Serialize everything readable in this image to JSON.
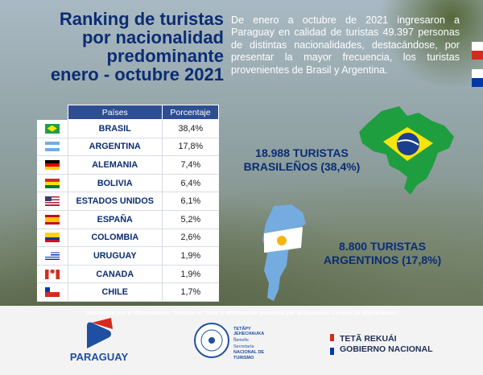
{
  "title_lines": [
    "Ranking de turistas",
    "por nacionalidad",
    "predominante",
    "enero - octubre 2021"
  ],
  "intro": "De enero a octubre de 2021 ingresaron a Paraguay en calidad de turistas 49.397 personas de distintas nacionalidades, destacándose, por presentar la mayor frecuencia, los turistas provenientes de Brasil y Argentina.",
  "table": {
    "headers": [
      "Países",
      "Porcentaje"
    ],
    "rows": [
      {
        "flag": "brazil-flag-icon",
        "country": "BRASIL",
        "pct": "38,4%"
      },
      {
        "flag": "argentina-flag-icon",
        "country": "ARGENTINA",
        "pct": "17,8%"
      },
      {
        "flag": "germany-flag-icon",
        "country": "ALEMANIA",
        "pct": "7,4%"
      },
      {
        "flag": "bolivia-flag-icon",
        "country": "BOLIVIA",
        "pct": "6,4%"
      },
      {
        "flag": "usa-flag-icon",
        "country": "ESTADOS UNIDOS",
        "pct": "6,1%"
      },
      {
        "flag": "spain-flag-icon",
        "country": "ESPAÑA",
        "pct": "5,2%"
      },
      {
        "flag": "colombia-flag-icon",
        "country": "COLOMBIA",
        "pct": "2,6%"
      },
      {
        "flag": "uruguay-flag-icon",
        "country": "URUGUAY",
        "pct": "1,9%"
      },
      {
        "flag": "canada-flag-icon",
        "country": "CANADA",
        "pct": "1,9%"
      },
      {
        "flag": "chile-flag-icon",
        "country": "CHILE",
        "pct": "1,7%"
      }
    ]
  },
  "brasil_callout": [
    "18.988 TURISTAS",
    "BRASILEÑOS (38,4%)"
  ],
  "argentina_callout": [
    "8.800 TURISTAS",
    "ARGENTINOS (17,8%)"
  ],
  "note": "Elaborado por el Observatorio Turístico en base a información proveida por la Dirección General de Migraciones",
  "logos": {
    "paraguay": "PARAGUAY",
    "senatur_line1": "TETÃPY",
    "senatur_line1b": "JEHECHAUKA",
    "senatur_line1c": "Ñemoñe",
    "senatur_line2": "Secretaría",
    "senatur_line3": "NACIONAL DE",
    "senatur_line4": "TURISMO",
    "gobierno_line1": "TETÃ REKUÁI",
    "gobierno_line2": "GOBIERNO NACIONAL"
  },
  "colors": {
    "title": "#0a2d73",
    "header": "#2e4e93",
    "brazil_green": "#1f9e3f",
    "brazil_yellow": "#f8e509",
    "argentina_blue": "#74acdf"
  }
}
